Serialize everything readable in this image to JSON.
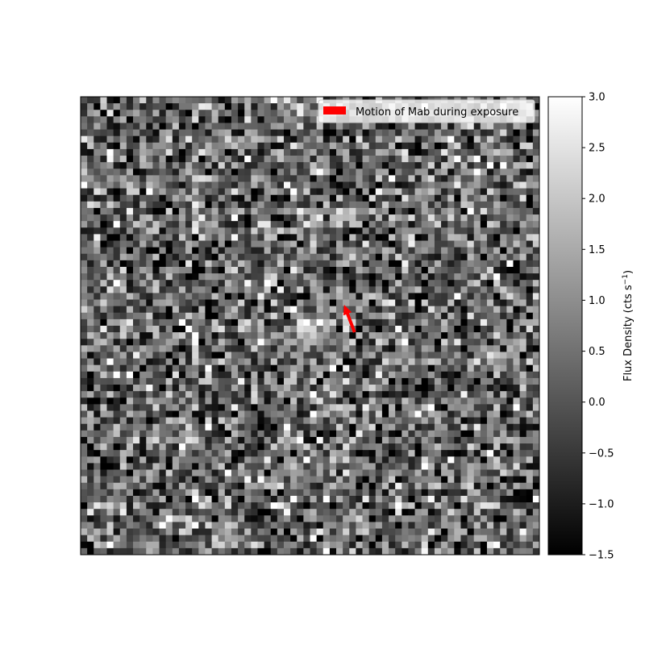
{
  "chart_data": {
    "type": "heatmap",
    "title": "",
    "xlabel": "",
    "ylabel": "",
    "grid": false,
    "image": {
      "grid_size": [
        70,
        70
      ],
      "colormap": "gray",
      "description_values": "noise field with mean ~0.3 cts/s; faint source near center",
      "source_center_cell": [
        34,
        35
      ],
      "source_peak": 2.5
    },
    "colorbar": {
      "label": "Flux Density (cts s",
      "label_superscript": "−1",
      "label_suffix": ")",
      "vmin": -1.5,
      "vmax": 3.0,
      "ticks": [
        {
          "value": 3.0,
          "label": "3.0"
        },
        {
          "value": 2.5,
          "label": "2.5"
        },
        {
          "value": 2.0,
          "label": "2.0"
        },
        {
          "value": 1.5,
          "label": "1.5"
        },
        {
          "value": 1.0,
          "label": "1.0"
        },
        {
          "value": 0.5,
          "label": "0.5"
        },
        {
          "value": 0.0,
          "label": "0.0"
        },
        {
          "value": -0.5,
          "label": "−0.5"
        },
        {
          "value": -1.0,
          "label": "−1.0"
        },
        {
          "value": -1.5,
          "label": "−1.5"
        }
      ]
    },
    "annotation": {
      "type": "arrow",
      "color": "#ff0000",
      "from_cell": [
        41.8,
        36.0
      ],
      "to_cell": [
        40.2,
        31.8
      ]
    },
    "legend": {
      "placement": "top-right",
      "entries": [
        {
          "label": "Motion of Mab during exposure",
          "color": "#ff0000"
        }
      ]
    }
  }
}
